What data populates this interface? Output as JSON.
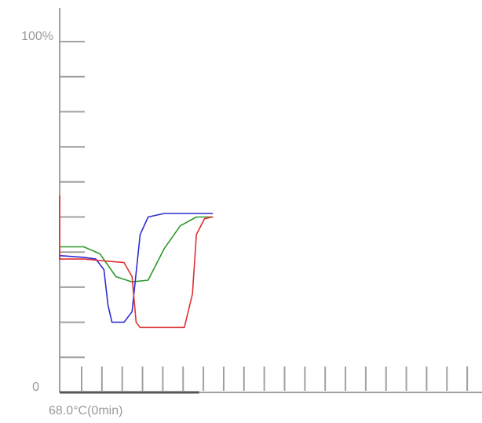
{
  "chart_data": {
    "type": "line",
    "title": "",
    "xlabel": "",
    "ylabel": "",
    "y_max_label": "100%",
    "y_min_label": "0",
    "x_start_label": "68.0°C(0min)",
    "ylim": [
      0,
      100
    ],
    "y_ticks": [
      0,
      10,
      20,
      30,
      40,
      50,
      60,
      70,
      80,
      90,
      100
    ],
    "x_tick_count": 21,
    "x_elapsed_fraction": 0.33,
    "grid": false,
    "legend": "none",
    "series": [
      {
        "color": "#2a9a2a",
        "points": [
          [
            0,
            41.5
          ],
          [
            0.6,
            41.5
          ],
          [
            1.0,
            39.5
          ],
          [
            1.4,
            33
          ],
          [
            1.8,
            31.5
          ],
          [
            2.2,
            32
          ],
          [
            2.6,
            41
          ],
          [
            3.0,
            47.5
          ],
          [
            3.4,
            50
          ],
          [
            3.8,
            50
          ]
        ]
      },
      {
        "color": "#2d2dd4",
        "points": [
          [
            0,
            38
          ],
          [
            0,
            39
          ],
          [
            0.6,
            38.5
          ],
          [
            0.9,
            38
          ],
          [
            1.1,
            35
          ],
          [
            1.2,
            25
          ],
          [
            1.3,
            20
          ],
          [
            1.6,
            20
          ],
          [
            1.8,
            23
          ],
          [
            2.0,
            45
          ],
          [
            2.2,
            50
          ],
          [
            2.6,
            51
          ],
          [
            3.8,
            51
          ]
        ]
      },
      {
        "color": "#e03030",
        "points": [
          [
            0,
            56
          ],
          [
            0,
            38
          ],
          [
            0.6,
            38
          ],
          [
            1.1,
            37.5
          ],
          [
            1.6,
            37
          ],
          [
            1.8,
            33
          ],
          [
            1.9,
            20
          ],
          [
            2.0,
            18.5
          ],
          [
            3.1,
            18.5
          ],
          [
            3.3,
            28
          ],
          [
            3.4,
            45
          ],
          [
            3.6,
            49.5
          ],
          [
            3.8,
            50
          ]
        ]
      }
    ]
  }
}
